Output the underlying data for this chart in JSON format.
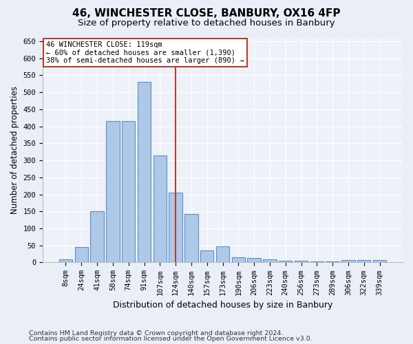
{
  "title1": "46, WINCHESTER CLOSE, BANBURY, OX16 4FP",
  "title2": "Size of property relative to detached houses in Banbury",
  "xlabel": "Distribution of detached houses by size in Banbury",
  "ylabel": "Number of detached properties",
  "categories": [
    "8sqm",
    "24sqm",
    "41sqm",
    "58sqm",
    "74sqm",
    "91sqm",
    "107sqm",
    "124sqm",
    "140sqm",
    "157sqm",
    "173sqm",
    "190sqm",
    "206sqm",
    "223sqm",
    "240sqm",
    "256sqm",
    "273sqm",
    "289sqm",
    "306sqm",
    "322sqm",
    "339sqm"
  ],
  "values": [
    8,
    45,
    150,
    415,
    415,
    530,
    315,
    205,
    143,
    35,
    48,
    15,
    13,
    8,
    5,
    5,
    2,
    2,
    7,
    7,
    7
  ],
  "bar_color": "#aec8e8",
  "bar_edge_color": "#5b8fc9",
  "vline_color": "#c0392b",
  "annotation_line1": "46 WINCHESTER CLOSE: 119sqm",
  "annotation_line2": "← 60% of detached houses are smaller (1,390)",
  "annotation_line3": "38% of semi-detached houses are larger (890) →",
  "annotation_box_color": "white",
  "annotation_box_edge": "#c0392b",
  "ylim": [
    0,
    660
  ],
  "yticks": [
    0,
    50,
    100,
    150,
    200,
    250,
    300,
    350,
    400,
    450,
    500,
    550,
    600,
    650
  ],
  "footer1": "Contains HM Land Registry data © Crown copyright and database right 2024.",
  "footer2": "Contains public sector information licensed under the Open Government Licence v3.0.",
  "bg_color": "#eaeff7",
  "plot_bg_color": "#edf1f8",
  "grid_color": "white",
  "title1_fontsize": 11,
  "title2_fontsize": 9.5,
  "xlabel_fontsize": 9,
  "ylabel_fontsize": 8.5,
  "tick_fontsize": 7.5,
  "footer_fontsize": 6.8,
  "vline_pos": 7.0
}
